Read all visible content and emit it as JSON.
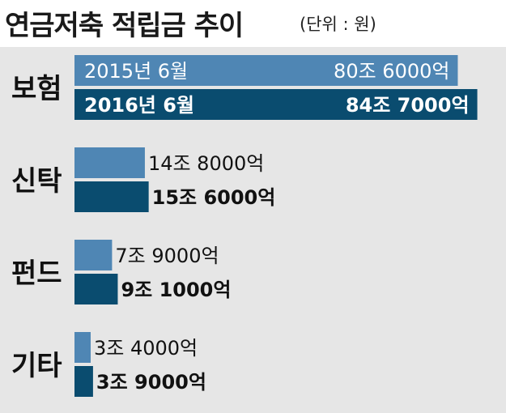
{
  "title": "연금저축 적립금 추이",
  "unit": "(단위 : 원)",
  "colors": {
    "y2015": "#4f86b4",
    "y2016": "#0a4c6f"
  },
  "chart_data": {
    "type": "bar",
    "orientation": "horizontal",
    "categories": [
      "보험",
      "신탁",
      "펀드",
      "기타"
    ],
    "series": [
      {
        "name": "2015년 6월",
        "values": [
          8.06,
          1.48,
          0.79,
          0.34
        ],
        "labels": [
          "80조 6000억",
          "14조 8000억",
          "7조 9000억",
          "3조 4000억"
        ]
      },
      {
        "name": "2016년 6월",
        "values": [
          8.47,
          1.56,
          0.91,
          0.39
        ],
        "labels": [
          "84조 7000억",
          "15조 6000억",
          "9조 1000억",
          "3조 9000억"
        ]
      }
    ]
  }
}
